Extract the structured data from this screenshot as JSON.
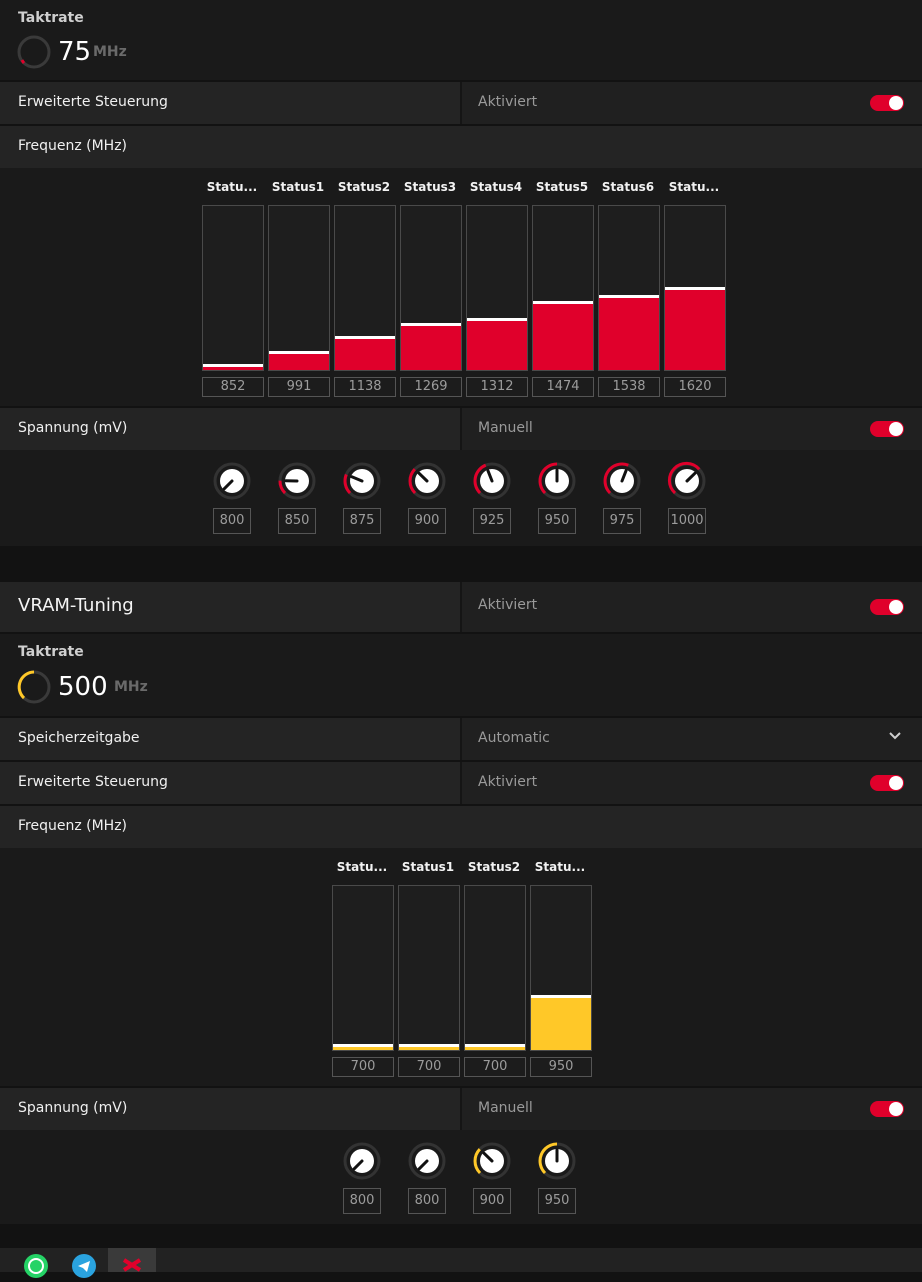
{
  "gpu": {
    "clock": {
      "title": "Taktrate",
      "value": "75",
      "unit": "MHz"
    },
    "advanced": {
      "label": "Erweiterte Steuerung",
      "state": "Aktiviert",
      "enabled": true
    },
    "frequency": {
      "label": "Frequenz (MHz)",
      "states": [
        "Statu...",
        "Status1",
        "Status2",
        "Status3",
        "Status4",
        "Status5",
        "Status6",
        "Statu..."
      ],
      "values": [
        "852",
        "991",
        "1138",
        "1269",
        "1312",
        "1474",
        "1538",
        "1620"
      ],
      "fill_fraction": [
        0.02,
        0.1,
        0.19,
        0.27,
        0.3,
        0.4,
        0.44,
        0.49
      ]
    },
    "voltage": {
      "label": "Spannung (mV)",
      "mode": "Manuell",
      "enabled": true,
      "values": [
        "800",
        "850",
        "875",
        "900",
        "925",
        "950",
        "975",
        "1000"
      ],
      "level": [
        0.0,
        0.17,
        0.25,
        0.33,
        0.42,
        0.5,
        0.58,
        0.67
      ]
    }
  },
  "vram": {
    "title": "VRAM-Tuning",
    "state": "Aktiviert",
    "enabled": true,
    "clock": {
      "title": "Taktrate",
      "value": "500",
      "unit": "MHz"
    },
    "timing": {
      "label": "Speicherzeitgabe",
      "value": "Automatic"
    },
    "advanced": {
      "label": "Erweiterte Steuerung",
      "state": "Aktiviert",
      "enabled": true
    },
    "frequency": {
      "label": "Frequenz (MHz)",
      "states": [
        "Statu...",
        "Status1",
        "Status2",
        "Statu..."
      ],
      "values": [
        "700",
        "700",
        "700",
        "950"
      ],
      "fill_fraction": [
        0.02,
        0.02,
        0.02,
        0.32
      ]
    },
    "voltage": {
      "label": "Spannung (mV)",
      "mode": "Manuell",
      "enabled": true,
      "values": [
        "800",
        "800",
        "900",
        "950"
      ],
      "level": [
        0.0,
        0.0,
        0.33,
        0.5
      ]
    }
  },
  "colors": {
    "gpu_accent": "#e0002b",
    "vram_accent": "#ffc828",
    "background": "#121212"
  },
  "taskbar": {
    "icons": [
      "whatsapp-icon",
      "telegram-icon",
      "amd-radeon-icon"
    ]
  }
}
